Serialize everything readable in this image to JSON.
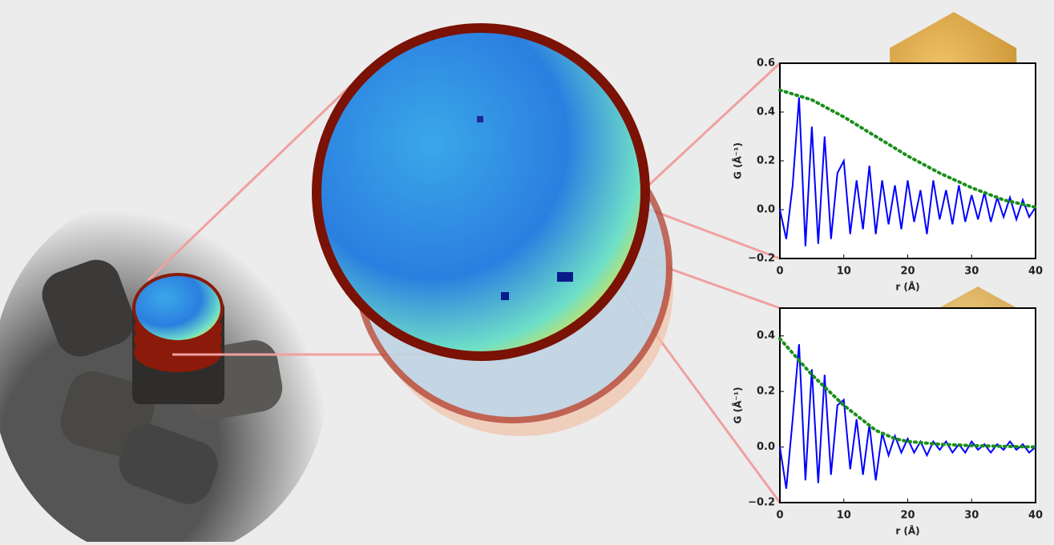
{
  "chart_data": [
    {
      "type": "line",
      "xlabel": "r (Å)",
      "ylabel": "G (Å⁻¹)",
      "xlim": [
        0,
        40
      ],
      "ylim": [
        -0.2,
        0.6
      ],
      "xticks": [
        0,
        10,
        20,
        30,
        40
      ],
      "yticks": [
        {
          "value": -0.2,
          "label": "−0.2"
        },
        {
          "value": 0,
          "label": "0.0"
        },
        0.2,
        0.4,
        0.6
      ],
      "series": [
        {
          "color": "#0000ff",
          "linestyle": "solid",
          "x": [
            0,
            1,
            2,
            3,
            4,
            5,
            6,
            7,
            8,
            9,
            10,
            11,
            12,
            13,
            14,
            15,
            16,
            17,
            18,
            19,
            20,
            21,
            22,
            23,
            24,
            25,
            26,
            27,
            28,
            29,
            30,
            31,
            32,
            33,
            34,
            35,
            36,
            37,
            38,
            39,
            40
          ],
          "values": [
            0,
            -0.12,
            0.1,
            0.46,
            -0.15,
            0.34,
            -0.14,
            0.3,
            -0.12,
            0.15,
            0.2,
            -0.1,
            0.12,
            -0.08,
            0.18,
            -0.1,
            0.12,
            -0.06,
            0.1,
            -0.08,
            0.12,
            -0.05,
            0.08,
            -0.1,
            0.12,
            -0.04,
            0.08,
            -0.06,
            0.1,
            -0.05,
            0.06,
            -0.04,
            0.07,
            -0.05,
            0.05,
            -0.03,
            0.05,
            -0.04,
            0.04,
            -0.03,
            0.01
          ]
        },
        {
          "color": "#1a8f1a",
          "linestyle": "dotted",
          "x": [
            0,
            5,
            10,
            15,
            20,
            25,
            30,
            35,
            40
          ],
          "values": [
            0.49,
            0.45,
            0.38,
            0.3,
            0.22,
            0.15,
            0.09,
            0.04,
            0.01
          ]
        }
      ]
    },
    {
      "type": "line",
      "xlabel": "r (Å)",
      "ylabel": "G (Å⁻¹)",
      "xlim": [
        0,
        40
      ],
      "ylim": [
        -0.2,
        0.5
      ],
      "xticks": [
        0,
        10,
        20,
        30,
        40
      ],
      "yticks": [
        {
          "value": -0.2,
          "label": "−0.2"
        },
        {
          "value": 0,
          "label": "0.0"
        },
        0.2,
        0.4
      ],
      "series": [
        {
          "color": "#0000ff",
          "linestyle": "solid",
          "x": [
            0,
            1,
            2,
            3,
            4,
            5,
            6,
            7,
            8,
            9,
            10,
            11,
            12,
            13,
            14,
            15,
            16,
            17,
            18,
            19,
            20,
            21,
            22,
            23,
            24,
            25,
            26,
            27,
            28,
            29,
            30,
            31,
            32,
            33,
            34,
            35,
            36,
            37,
            38,
            39,
            40
          ],
          "values": [
            0,
            -0.15,
            0.1,
            0.37,
            -0.12,
            0.28,
            -0.13,
            0.26,
            -0.1,
            0.15,
            0.17,
            -0.08,
            0.1,
            -0.1,
            0.08,
            -0.12,
            0.05,
            -0.03,
            0.04,
            -0.02,
            0.03,
            -0.02,
            0.02,
            -0.03,
            0.02,
            -0.01,
            0.02,
            -0.02,
            0.01,
            -0.02,
            0.02,
            -0.01,
            0.01,
            -0.02,
            0.01,
            -0.01,
            0.02,
            -0.01,
            0.01,
            -0.02,
            0
          ]
        },
        {
          "color": "#1a8f1a",
          "linestyle": "dotted",
          "x": [
            0,
            5,
            10,
            15,
            18,
            20,
            25,
            30,
            40
          ],
          "values": [
            0.39,
            0.26,
            0.15,
            0.06,
            0.03,
            0.02,
            0.01,
            0.005,
            0
          ]
        }
      ]
    }
  ]
}
